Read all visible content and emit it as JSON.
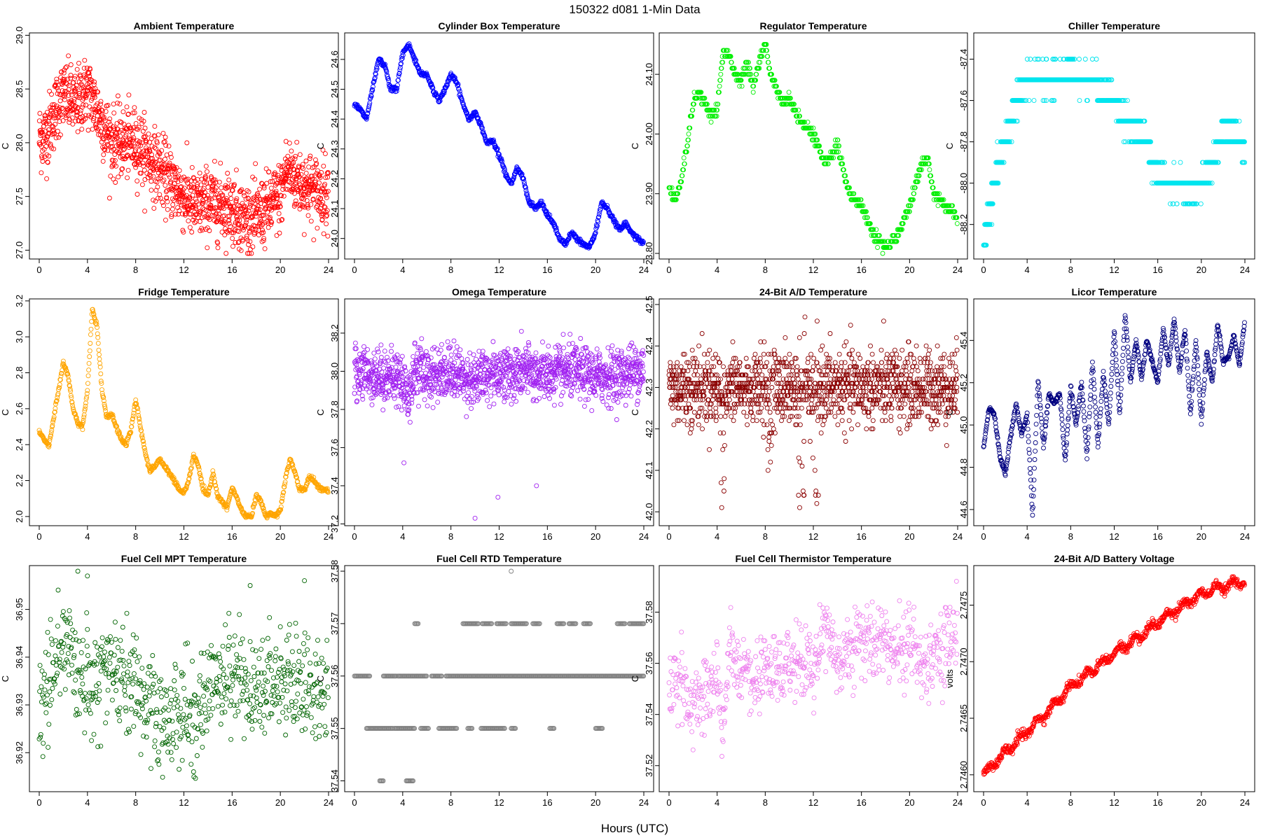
{
  "figure": {
    "title": "150322   d081   1-Min Data",
    "xlabel": "Hours (UTC)"
  },
  "chart_data": [
    {
      "type": "scatter",
      "title": "Ambient Temperature",
      "ylabel": "C",
      "color": "#ff0000",
      "xlim": [
        0,
        24
      ],
      "xticks": [
        0,
        4,
        8,
        12,
        16,
        20,
        24
      ],
      "ylim": [
        26.97,
        28.97
      ],
      "yticks": [
        "27.0",
        "27.5",
        "28.0",
        "28.5",
        "29.0"
      ],
      "noise": 0.16,
      "decimals": 2,
      "trend_x": [
        0,
        0.5,
        1,
        1.5,
        2,
        3,
        4,
        5,
        6,
        8,
        10,
        12,
        13,
        14,
        16,
        17,
        18,
        19,
        20,
        20.5,
        21,
        22,
        23,
        24
      ],
      "trend_y": [
        28.05,
        28.05,
        28.2,
        28.35,
        28.45,
        28.35,
        28.5,
        28.25,
        28.0,
        28.0,
        27.75,
        27.5,
        27.4,
        27.45,
        27.4,
        27.3,
        27.3,
        27.4,
        27.5,
        27.75,
        27.7,
        27.6,
        27.55,
        27.55
      ]
    },
    {
      "type": "scatter",
      "title": "Cylinder Box Temperature",
      "ylabel": "C",
      "color": "#0000ff",
      "xlim": [
        0,
        24
      ],
      "xticks": [
        0,
        4,
        8,
        12,
        16,
        20,
        24
      ],
      "ylim": [
        23.95,
        24.67
      ],
      "yticks": [
        "24.0",
        "24.1",
        "24.2",
        "24.3",
        "24.4",
        "24.5",
        "24.6"
      ],
      "noise": 0.004,
      "decimals": 3,
      "trend_x": [
        0,
        0.5,
        1,
        1.5,
        2,
        2.5,
        3,
        3.5,
        4,
        4.5,
        5,
        5.5,
        6,
        6.5,
        7,
        7.5,
        8,
        8.5,
        9,
        9.5,
        10,
        10.5,
        11,
        11.5,
        12,
        12.5,
        13,
        13.5,
        14,
        14.5,
        15,
        15.5,
        16,
        16.5,
        17,
        17.5,
        18,
        18.5,
        19,
        19.5,
        20,
        20.5,
        21,
        21.5,
        22,
        22.5,
        23,
        23.5,
        24
      ],
      "trend_y": [
        24.45,
        24.43,
        24.4,
        24.5,
        24.6,
        24.58,
        24.5,
        24.5,
        24.62,
        24.65,
        24.6,
        24.55,
        24.55,
        24.5,
        24.46,
        24.5,
        24.55,
        24.52,
        24.45,
        24.4,
        24.42,
        24.38,
        24.32,
        24.33,
        24.28,
        24.22,
        24.18,
        24.24,
        24.2,
        24.12,
        24.1,
        24.12,
        24.08,
        24.05,
        24.0,
        23.98,
        24.02,
        24.0,
        23.98,
        23.97,
        24.02,
        24.12,
        24.1,
        24.06,
        24.03,
        24.05,
        24.02,
        24.0,
        23.98
      ]
    },
    {
      "type": "scatter",
      "title": "Regulator Temperature",
      "ylabel": "C",
      "color": "#00ee00",
      "xlim": [
        0,
        24
      ],
      "xticks": [
        0,
        4,
        8,
        12,
        16,
        20,
        24
      ],
      "ylim": [
        23.8,
        24.16
      ],
      "yticks": [
        "23.80",
        "23.90",
        "24.00",
        "24.10"
      ],
      "noise": 0.004,
      "decimals": 2,
      "step": 0.01,
      "trend_x": [
        0,
        0.5,
        1,
        1.5,
        2,
        2.5,
        3,
        3.5,
        4,
        4.5,
        5,
        5.5,
        6,
        6.5,
        7,
        7.5,
        8,
        8.5,
        9,
        9.5,
        10,
        11,
        12,
        13,
        14,
        15,
        16,
        17,
        18,
        19,
        20,
        21,
        21.5,
        22,
        23,
        24
      ],
      "trend_y": [
        23.91,
        23.89,
        23.92,
        23.98,
        24.05,
        24.07,
        24.05,
        24.03,
        24.04,
        24.14,
        24.13,
        24.1,
        24.09,
        24.12,
        24.08,
        24.12,
        24.15,
        24.1,
        24.07,
        24.05,
        24.06,
        24.02,
        24.0,
        23.95,
        23.98,
        23.9,
        23.88,
        23.83,
        23.81,
        23.83,
        23.88,
        23.95,
        23.96,
        23.9,
        23.88,
        23.86
      ]
    },
    {
      "type": "scatter",
      "title": "Chiller Temperature",
      "ylabel": "C",
      "color": "#00e5ee",
      "xlim": [
        0,
        24
      ],
      "xticks": [
        0,
        4,
        8,
        12,
        16,
        20,
        24
      ],
      "ylim": [
        -88.34,
        -87.3
      ],
      "yticks": [
        "-88.2",
        "-88.0",
        "-87.8",
        "-87.6",
        "-87.4"
      ],
      "noise": 0.03,
      "decimals": 1,
      "step": 0.1,
      "trend_x": [
        0,
        0.3,
        0.7,
        1,
        1.5,
        2,
        2.5,
        3,
        4,
        5,
        6,
        7,
        8,
        9,
        10,
        11,
        12,
        13,
        14,
        15,
        15.5,
        16,
        17,
        18,
        19,
        20,
        21,
        22,
        23,
        24
      ],
      "trend_y": [
        -88.3,
        -88.2,
        -88.1,
        -88.0,
        -87.9,
        -87.8,
        -87.7,
        -87.6,
        -87.5,
        -87.5,
        -87.5,
        -87.5,
        -87.45,
        -87.5,
        -87.5,
        -87.55,
        -87.6,
        -87.7,
        -87.75,
        -87.8,
        -87.9,
        -87.95,
        -88.0,
        -88.0,
        -88.05,
        -88.0,
        -87.9,
        -87.75,
        -87.75,
        -87.85
      ]
    },
    {
      "type": "scatter",
      "title": "Fridge Temperature",
      "ylabel": "C",
      "color": "#ffa500",
      "xlim": [
        0,
        24
      ],
      "xticks": [
        0,
        4,
        8,
        12,
        16,
        20,
        24
      ],
      "ylim": [
        1.98,
        3.18
      ],
      "yticks": [
        "2.0",
        "2.2",
        "2.4",
        "2.6",
        "2.8",
        "3.0",
        "3.2"
      ],
      "noise": 0.006,
      "decimals": 3,
      "trend_x": [
        0,
        0.4,
        0.8,
        1.2,
        1.6,
        2,
        2.4,
        2.8,
        3.2,
        3.6,
        4,
        4.4,
        4.8,
        5.2,
        5.6,
        6,
        6.4,
        6.8,
        7.2,
        7.6,
        8,
        8.4,
        8.8,
        9.2,
        9.6,
        10,
        10.4,
        10.8,
        11.2,
        11.6,
        12,
        12.4,
        12.8,
        13.2,
        13.6,
        14,
        14.4,
        14.8,
        15.2,
        15.6,
        16,
        16.4,
        16.8,
        17.2,
        17.6,
        18,
        18.4,
        18.8,
        19.2,
        19.6,
        20,
        20.4,
        20.8,
        21.2,
        21.6,
        22,
        22.4,
        22.8,
        23.2,
        23.6,
        24
      ],
      "trend_y": [
        2.47,
        2.43,
        2.39,
        2.55,
        2.7,
        2.86,
        2.78,
        2.6,
        2.52,
        2.5,
        2.7,
        3.16,
        3.05,
        2.7,
        2.55,
        2.57,
        2.5,
        2.43,
        2.4,
        2.48,
        2.65,
        2.5,
        2.35,
        2.25,
        2.28,
        2.32,
        2.28,
        2.24,
        2.2,
        2.15,
        2.13,
        2.2,
        2.34,
        2.28,
        2.15,
        2.12,
        2.24,
        2.12,
        2.08,
        2.05,
        2.16,
        2.1,
        2.03,
        2.0,
        2.0,
        2.12,
        2.08,
        2.0,
        2.02,
        2.0,
        2.03,
        2.2,
        2.32,
        2.25,
        2.15,
        2.15,
        2.22,
        2.2,
        2.16,
        2.15,
        2.14
      ]
    },
    {
      "type": "scatter",
      "title": "Omega Temperature",
      "ylabel": "C",
      "color": "#a020f0",
      "xlim": [
        0,
        24
      ],
      "xticks": [
        0,
        4,
        8,
        12,
        16,
        20,
        24
      ],
      "ylim": [
        37.22,
        38.35
      ],
      "yticks": [
        "37.2",
        "37.4",
        "37.6",
        "37.8",
        "38.0",
        "38.2"
      ],
      "noise": 0.07,
      "decimals": 2,
      "trend_x": [
        0,
        2,
        4,
        4.5,
        5,
        6,
        8,
        10,
        11,
        12,
        13,
        14,
        16,
        18,
        20,
        22,
        24
      ],
      "trend_y": [
        38.0,
        37.98,
        37.96,
        37.85,
        38.02,
        37.98,
        38.0,
        37.95,
        37.98,
        38.0,
        37.98,
        38.0,
        37.98,
        38.0,
        37.97,
        37.98,
        38.02
      ],
      "outliers": [
        [
          4.1,
          37.52
        ],
        [
          10.0,
          37.23
        ],
        [
          11.9,
          37.34
        ],
        [
          15.1,
          37.4
        ]
      ]
    },
    {
      "type": "scatter",
      "title": "24-Bit A/D Temperature",
      "ylabel": "C",
      "color": "#8b0000",
      "xlim": [
        0,
        24
      ],
      "xticks": [
        0,
        4,
        8,
        12,
        16,
        20,
        24
      ],
      "ylim": [
        41.98,
        42.5
      ],
      "yticks": [
        "42.0",
        "42.1",
        "42.2",
        "42.3",
        "42.4",
        "42.5"
      ],
      "noise": 0.045,
      "decimals": 2,
      "step": 0.01,
      "trend_x": [
        0,
        24
      ],
      "trend_y": [
        42.3,
        42.3
      ],
      "dips": [
        [
          4.5,
          42.0
        ],
        [
          8.3,
          42.1
        ],
        [
          11.0,
          42.0
        ],
        [
          12.2,
          42.0
        ],
        [
          19.3,
          42.15
        ]
      ]
    },
    {
      "type": "scatter",
      "title": "Licor Temperature",
      "ylabel": "C",
      "color": "#000080",
      "xlim": [
        0,
        24
      ],
      "xticks": [
        0,
        4,
        8,
        12,
        16,
        20,
        24
      ],
      "ylim": [
        44.55,
        45.57
      ],
      "yticks": [
        "44.6",
        "44.8",
        "45.0",
        "45.2",
        "45.4"
      ],
      "noise": 0.006,
      "decimals": 3,
      "trend_x": [
        0,
        0.5,
        1,
        1.5,
        2,
        2.5,
        3,
        3.5,
        4,
        4.5,
        5,
        5.5,
        6,
        6.5,
        7,
        7.5,
        8,
        8.5,
        9,
        9.5,
        10,
        10.5,
        11,
        11.5,
        12,
        12.5,
        13,
        13.5,
        14,
        14.5,
        15,
        15.5,
        16,
        16.5,
        17,
        17.5,
        18,
        18.5,
        19,
        19.5,
        20,
        20.5,
        21,
        21.5,
        22,
        22.5,
        23,
        23.5,
        24
      ],
      "trend_y": [
        44.9,
        45.08,
        45.05,
        44.85,
        44.77,
        44.95,
        45.1,
        44.95,
        45.05,
        44.57,
        45.22,
        44.9,
        45.15,
        45.1,
        45.15,
        44.83,
        45.18,
        45.0,
        45.2,
        44.85,
        45.3,
        44.9,
        45.25,
        45.0,
        45.45,
        45.05,
        45.52,
        45.2,
        45.4,
        45.22,
        45.4,
        45.3,
        45.2,
        45.45,
        45.28,
        45.5,
        45.25,
        45.45,
        45.05,
        45.4,
        45.02,
        45.35,
        45.2,
        45.48,
        45.3,
        45.32,
        45.42,
        45.28,
        45.5
      ]
    },
    {
      "type": "scatter",
      "title": "Fuel Cell MPT Temperature",
      "ylabel": "C",
      "color": "#006400",
      "xlim": [
        0,
        24
      ],
      "xticks": [
        0,
        4,
        8,
        12,
        16,
        20,
        24
      ],
      "ylim": [
        36.913,
        36.958
      ],
      "yticks": [
        "36.92",
        "36.93",
        "36.94",
        "36.95"
      ],
      "noise": 0.0055,
      "decimals": 3,
      "trend_x": [
        0,
        1,
        2,
        3,
        4,
        6,
        8,
        10,
        12,
        13,
        14,
        16,
        18,
        20,
        22,
        24
      ],
      "trend_y": [
        36.928,
        36.936,
        36.943,
        36.938,
        36.936,
        36.937,
        36.934,
        36.925,
        36.93,
        36.926,
        36.934,
        36.937,
        36.933,
        36.936,
        36.934,
        36.932
      ],
      "outliers": [
        [
          4.0,
          36.957
        ],
        [
          17.5,
          36.955
        ],
        [
          22.0,
          36.956
        ]
      ]
    },
    {
      "type": "scatter",
      "title": "Fuel Cell RTD Temperature",
      "ylabel": "C",
      "color": "#808080",
      "xlim": [
        0,
        24
      ],
      "xticks": [
        0,
        4,
        8,
        12,
        16,
        20,
        24
      ],
      "ylim": [
        37.539,
        37.58
      ],
      "yticks": [
        "37.54",
        "37.55",
        "37.56",
        "37.57",
        "37.58"
      ],
      "levels": [
        {
          "y": 37.54,
          "ranges": [
            [
              2.1,
              2.4
            ],
            [
              4.3,
              4.9
            ]
          ]
        },
        {
          "y": 37.55,
          "ranges": [
            [
              1.0,
              3.2
            ],
            [
              3.3,
              5.0
            ],
            [
              5.5,
              6.2
            ],
            [
              7.0,
              8.5
            ],
            [
              9.4,
              9.8
            ],
            [
              10.5,
              12.5
            ],
            [
              13.0,
              13.4
            ],
            [
              16.2,
              16.6
            ],
            [
              20.0,
              20.6
            ]
          ]
        },
        {
          "y": 37.56,
          "ranges": [
            [
              0,
              1.3
            ],
            [
              2.4,
              3.5
            ],
            [
              3.6,
              6.0
            ],
            [
              6.4,
              7.3
            ],
            [
              7.6,
              24
            ]
          ]
        },
        {
          "y": 37.57,
          "ranges": [
            [
              5.0,
              5.3
            ],
            [
              9.0,
              10.3
            ],
            [
              10.6,
              11.4
            ],
            [
              11.8,
              12.6
            ],
            [
              13.0,
              14.3
            ],
            [
              14.8,
              15.4
            ],
            [
              16.8,
              17.4
            ],
            [
              17.8,
              18.4
            ],
            [
              19.0,
              19.6
            ],
            [
              21.8,
              22.5
            ],
            [
              22.8,
              24
            ]
          ]
        }
      ],
      "outliers": [
        [
          13.0,
          37.58
        ]
      ]
    },
    {
      "type": "scatter",
      "title": "Fuel Cell Thermistor Temperature",
      "ylabel": "C",
      "color": "#ee82ee",
      "xlim": [
        0,
        24
      ],
      "xticks": [
        0,
        4,
        8,
        12,
        16,
        20,
        24
      ],
      "ylim": [
        37.512,
        37.596
      ],
      "yticks": [
        "37.52",
        "37.54",
        "37.56",
        "37.58"
      ],
      "noise": 0.0075,
      "decimals": 3,
      "trend_x": [
        0,
        1,
        2,
        3,
        4,
        4.5,
        5,
        6,
        7,
        8,
        9,
        10,
        11,
        12,
        13,
        14,
        15,
        16,
        17,
        18,
        19,
        20,
        21,
        22,
        23,
        24
      ],
      "trend_y": [
        37.55,
        37.555,
        37.54,
        37.548,
        37.552,
        37.535,
        37.565,
        37.555,
        37.552,
        37.556,
        37.555,
        37.56,
        37.562,
        37.558,
        37.575,
        37.562,
        37.565,
        37.57,
        37.568,
        37.57,
        37.565,
        37.57,
        37.558,
        37.565,
        37.568,
        37.572
      ]
    },
    {
      "type": "scatter",
      "title": "24-Bit A/D Battery Voltage",
      "ylabel": "volts",
      "color": "#ff0000",
      "xlim": [
        0,
        24
      ],
      "xticks": [
        0,
        4,
        8,
        12,
        16,
        20,
        24
      ],
      "ylim": [
        2.7459,
        2.7478
      ],
      "yticks": [
        "2.7460",
        "2.7465",
        "2.7470",
        "2.7475"
      ],
      "noise": 2e-05,
      "decimals": 5,
      "wavy": true,
      "trend_x": [
        0,
        2,
        4,
        6,
        8,
        10,
        12,
        14,
        16,
        18,
        20,
        22,
        24
      ],
      "trend_y": [
        2.746,
        2.7462,
        2.74638,
        2.74657,
        2.74678,
        2.74692,
        2.74708,
        2.7472,
        2.74735,
        2.74748,
        2.7476,
        2.74767,
        2.7477
      ]
    }
  ]
}
